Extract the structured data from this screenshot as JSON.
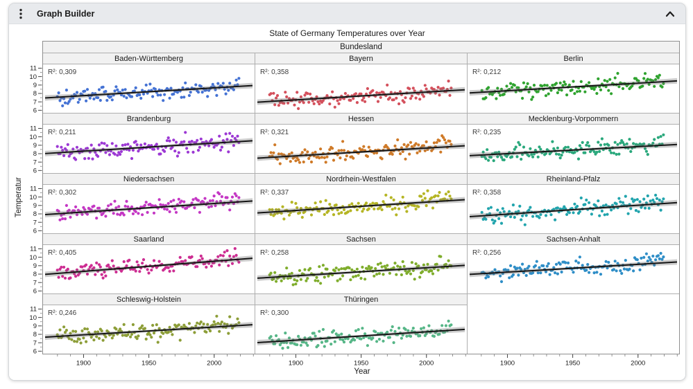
{
  "window": {
    "title": "Graph Builder"
  },
  "chart_data": {
    "type": "scatter",
    "title": "State of Germany Temperatures over Year",
    "group_label": "Bundesland",
    "xlabel": "Year",
    "ylabel": "Temperatur",
    "x_domain": [
      1870,
      2032
    ],
    "x_ticks": [
      1900,
      1950,
      2000
    ],
    "x_minor_step": 10,
    "y_domain": [
      5.7,
      11.45
    ],
    "y_ticks": [
      11,
      10,
      9,
      8,
      7,
      6
    ],
    "year_start": 1881,
    "year_end": 2020,
    "columns": 3,
    "trend_line_color": "#141414",
    "confidence_band_color": "rgba(110,110,110,0.35)",
    "panels": [
      {
        "name": "Baden-Württemberg",
        "r2": 0.309,
        "r2_label": "R²: 0,309",
        "color": "#4472d4",
        "trend": [
          7.45,
          8.95
        ],
        "seed": 101
      },
      {
        "name": "Bayern",
        "r2": 0.358,
        "r2_label": "R²: 0,358",
        "color": "#d4505c",
        "trend": [
          6.95,
          8.45
        ],
        "seed": 102
      },
      {
        "name": "Berlin",
        "r2": 0.212,
        "r2_label": "R²: 0,212",
        "color": "#2fa32f",
        "trend": [
          8.05,
          9.5
        ],
        "seed": 103
      },
      {
        "name": "Brandenburg",
        "r2": 0.211,
        "r2_label": "R²: 0,211",
        "color": "#9c38d4",
        "trend": [
          8.0,
          9.55
        ],
        "seed": 104
      },
      {
        "name": "Hessen",
        "r2": 0.321,
        "r2_label": "R²: 0,321",
        "color": "#cf7a28",
        "trend": [
          7.45,
          8.95
        ],
        "seed": 105
      },
      {
        "name": "Mecklenburg-Vorpommern",
        "r2": 0.235,
        "r2_label": "R²: 0,235",
        "color": "#2aa87c",
        "trend": [
          7.75,
          9.1
        ],
        "seed": 106
      },
      {
        "name": "Niedersachsen",
        "r2": 0.302,
        "r2_label": "R²: 0,302",
        "color": "#c437c4",
        "trend": [
          7.9,
          9.55
        ],
        "seed": 107
      },
      {
        "name": "Nordrhein-Westfalen",
        "r2": 0.337,
        "r2_label": "R²: 0,337",
        "color": "#b5b524",
        "trend": [
          8.1,
          9.7
        ],
        "seed": 108
      },
      {
        "name": "Rheinland-Pfalz",
        "r2": 0.358,
        "r2_label": "R²: 0,358",
        "color": "#21a4ad",
        "trend": [
          7.65,
          9.35
        ],
        "seed": 109
      },
      {
        "name": "Saarland",
        "r2": 0.405,
        "r2_label": "R²: 0,405",
        "color": "#cd2d92",
        "trend": [
          7.95,
          9.9
        ],
        "seed": 110
      },
      {
        "name": "Sachsen",
        "r2": 0.258,
        "r2_label": "R²: 0,258",
        "color": "#7fad2c",
        "trend": [
          7.5,
          9.05
        ],
        "seed": 111
      },
      {
        "name": "Sachsen-Anhalt",
        "r2": 0.256,
        "r2_label": "R²: 0,256",
        "color": "#2f8ec7",
        "trend": [
          7.95,
          9.45
        ],
        "seed": 112
      },
      {
        "name": "Schleswig-Holstein",
        "r2": 0.246,
        "r2_label": "R²: 0,246",
        "color": "#8d9e38",
        "trend": [
          7.65,
          9.15
        ],
        "seed": 113
      },
      {
        "name": "Thüringen",
        "r2": 0.3,
        "r2_label": "R²: 0,300",
        "color": "#56b687",
        "trend": [
          7.0,
          8.6
        ],
        "seed": 114
      }
    ]
  }
}
